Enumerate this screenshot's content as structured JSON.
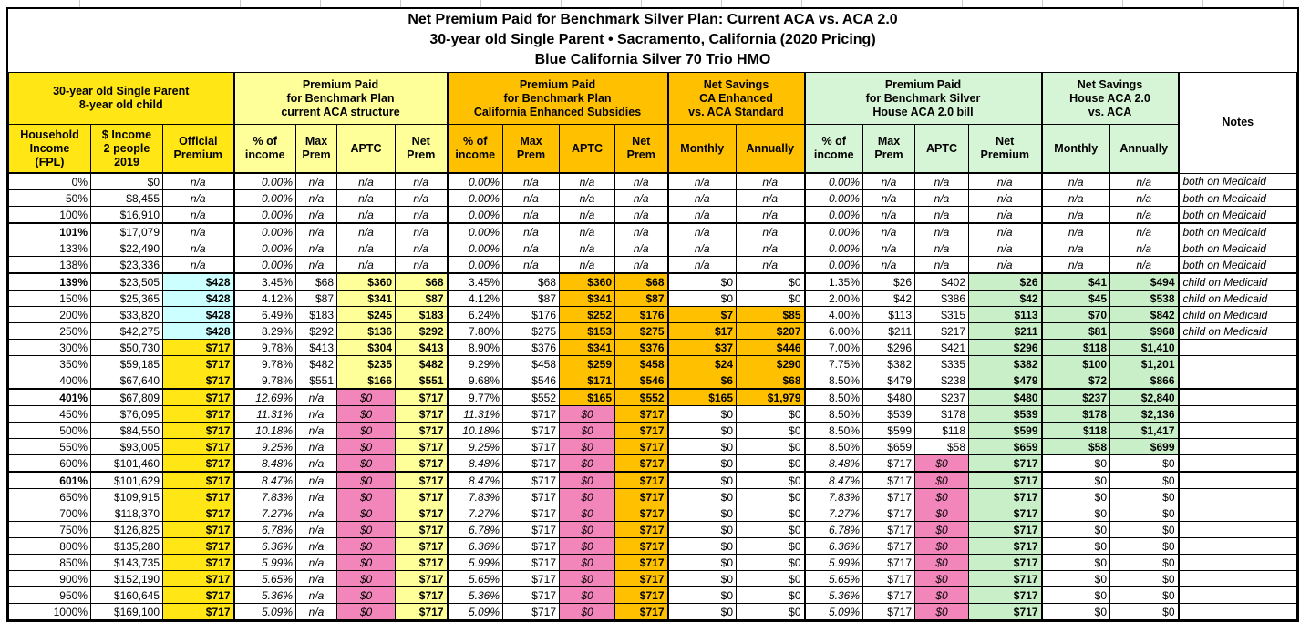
{
  "title": {
    "line1": "Net Premium Paid for Benchmark Silver Plan: Current ACA vs. ACA 2.0",
    "line2": "30-year old Single Parent • Sacramento, California (2020 Pricing)",
    "line3": "Blue California Silver 70 Trio HMO"
  },
  "colors": {
    "strong_yellow": "#ffe614",
    "pale_yellow": "#ffff99",
    "orange": "#ffc000",
    "pale_green_header": "#d6f5d6",
    "pale_green_cell": "#c8efc8",
    "cyan": "#ccffff",
    "pink": "#f285ba",
    "border": "#000000"
  },
  "groups": [
    {
      "id": "household",
      "lines": [
        "30-year old Single Parent",
        "8-year old child"
      ],
      "span": 3,
      "color": "yellow"
    },
    {
      "id": "aca-current",
      "lines": [
        "Premium Paid",
        "for Benchmark Plan",
        "current ACA structure"
      ],
      "span": 4,
      "color": "ly"
    },
    {
      "id": "ca-enhanced",
      "lines": [
        "Premium Paid",
        "for Benchmark Plan",
        "California Enhanced Subsidies"
      ],
      "span": 4,
      "color": "orange"
    },
    {
      "id": "ca-savings",
      "lines": [
        "Net Savings",
        "CA Enhanced",
        "vs. ACA Standard"
      ],
      "span": 2,
      "color": "orange"
    },
    {
      "id": "house-aca2",
      "lines": [
        "Premium Paid",
        "for Benchmark Silver",
        "House ACA 2.0 bill"
      ],
      "span": 4,
      "color": "grnhdr"
    },
    {
      "id": "house-savings",
      "lines": [
        "Net Savings",
        "House ACA 2.0",
        "vs. ACA"
      ],
      "span": 2,
      "color": "grnhdr"
    }
  ],
  "notes_header": "Notes",
  "column_headers": [
    {
      "id": "fpl",
      "lines": [
        "Household",
        "Income",
        "(FPL)"
      ],
      "color": "yellow"
    },
    {
      "id": "income",
      "lines": [
        "$ Income",
        "2 people",
        "2019"
      ],
      "color": "yellow"
    },
    {
      "id": "official-premium",
      "lines": [
        "Official",
        "Premium"
      ],
      "color": "yellow"
    },
    {
      "id": "aca-pct-income",
      "lines": [
        "% of",
        "income"
      ],
      "color": "ly"
    },
    {
      "id": "aca-max-prem",
      "lines": [
        "Max",
        "Prem"
      ],
      "color": "ly"
    },
    {
      "id": "aca-aptc",
      "lines": [
        "APTC"
      ],
      "color": "ly"
    },
    {
      "id": "aca-net-prem",
      "lines": [
        "Net",
        "Prem"
      ],
      "color": "ly"
    },
    {
      "id": "ca-pct-income",
      "lines": [
        "% of",
        "income"
      ],
      "color": "orange"
    },
    {
      "id": "ca-max-prem",
      "lines": [
        "Max",
        "Prem"
      ],
      "color": "orange"
    },
    {
      "id": "ca-aptc",
      "lines": [
        "APTC"
      ],
      "color": "orange"
    },
    {
      "id": "ca-net-prem",
      "lines": [
        "Net",
        "Prem"
      ],
      "color": "orange"
    },
    {
      "id": "ca-monthly",
      "lines": [
        "Monthly"
      ],
      "color": "orange"
    },
    {
      "id": "ca-annually",
      "lines": [
        "Annually"
      ],
      "color": "orange"
    },
    {
      "id": "house-pct-income",
      "lines": [
        "% of",
        "income"
      ],
      "color": "grnhdr"
    },
    {
      "id": "house-max-prem",
      "lines": [
        "Max",
        "Prem"
      ],
      "color": "grnhdr"
    },
    {
      "id": "house-aptc",
      "lines": [
        "APTC"
      ],
      "color": "grnhdr"
    },
    {
      "id": "house-net-premium",
      "lines": [
        "Net",
        "Premium"
      ],
      "color": "grnhdr"
    },
    {
      "id": "house-monthly",
      "lines": [
        "Monthly"
      ],
      "color": "grnhdr"
    },
    {
      "id": "house-annually",
      "lines": [
        "Annually"
      ],
      "color": "grnhdr"
    }
  ],
  "rows": [
    {
      "fpl": "0%",
      "income": "$0",
      "premium": "n/a",
      "aca": [
        "0.00%",
        "n/a",
        "n/a",
        "n/a"
      ],
      "ca": [
        "0.00%",
        "n/a",
        "n/a",
        "n/a"
      ],
      "ca_sav": [
        "n/a",
        "n/a"
      ],
      "house": [
        "0.00%",
        "n/a",
        "n/a",
        "n/a"
      ],
      "house_sav": [
        "n/a",
        "n/a"
      ],
      "notes": "both on Medicaid",
      "band": "medicaid"
    },
    {
      "fpl": "50%",
      "income": "$8,455",
      "premium": "n/a",
      "aca": [
        "0.00%",
        "n/a",
        "n/a",
        "n/a"
      ],
      "ca": [
        "0.00%",
        "n/a",
        "n/a",
        "n/a"
      ],
      "ca_sav": [
        "n/a",
        "n/a"
      ],
      "house": [
        "0.00%",
        "n/a",
        "n/a",
        "n/a"
      ],
      "house_sav": [
        "n/a",
        "n/a"
      ],
      "notes": "both on Medicaid",
      "band": "medicaid"
    },
    {
      "fpl": "100%",
      "income": "$16,910",
      "premium": "n/a",
      "aca": [
        "0.00%",
        "n/a",
        "n/a",
        "n/a"
      ],
      "ca": [
        "0.00%",
        "n/a",
        "n/a",
        "n/a"
      ],
      "ca_sav": [
        "n/a",
        "n/a"
      ],
      "house": [
        "0.00%",
        "n/a",
        "n/a",
        "n/a"
      ],
      "house_sav": [
        "n/a",
        "n/a"
      ],
      "notes": "both on Medicaid",
      "band": "medicaid"
    },
    {
      "fpl": "101%",
      "income": "$17,079",
      "premium": "n/a",
      "aca": [
        "0.00%",
        "n/a",
        "n/a",
        "n/a"
      ],
      "ca": [
        "0.00%",
        "n/a",
        "n/a",
        "n/a"
      ],
      "ca_sav": [
        "n/a",
        "n/a"
      ],
      "house": [
        "0.00%",
        "n/a",
        "n/a",
        "n/a"
      ],
      "house_sav": [
        "n/a",
        "n/a"
      ],
      "notes": "both on Medicaid",
      "band": "medicaid",
      "key": true
    },
    {
      "fpl": "133%",
      "income": "$22,490",
      "premium": "n/a",
      "aca": [
        "0.00%",
        "n/a",
        "n/a",
        "n/a"
      ],
      "ca": [
        "0.00%",
        "n/a",
        "n/a",
        "n/a"
      ],
      "ca_sav": [
        "n/a",
        "n/a"
      ],
      "house": [
        "0.00%",
        "n/a",
        "n/a",
        "n/a"
      ],
      "house_sav": [
        "n/a",
        "n/a"
      ],
      "notes": "both on Medicaid",
      "band": "medicaid"
    },
    {
      "fpl": "138%",
      "income": "$23,336",
      "premium": "n/a",
      "aca": [
        "0.00%",
        "n/a",
        "n/a",
        "n/a"
      ],
      "ca": [
        "0.00%",
        "n/a",
        "n/a",
        "n/a"
      ],
      "ca_sav": [
        "n/a",
        "n/a"
      ],
      "house": [
        "0.00%",
        "n/a",
        "n/a",
        "n/a"
      ],
      "house_sav": [
        "n/a",
        "n/a"
      ],
      "notes": "both on Medicaid",
      "band": "medicaid"
    },
    {
      "fpl": "139%",
      "income": "$23,505",
      "premium": "$428",
      "aca": [
        "3.45%",
        "$68",
        "$360",
        "$68"
      ],
      "ca": [
        "3.45%",
        "$68",
        "$360",
        "$68"
      ],
      "ca_sav": [
        "$0",
        "$0"
      ],
      "house": [
        "1.35%",
        "$26",
        "$402",
        "$26"
      ],
      "house_sav": [
        "$41",
        "$494"
      ],
      "notes": "child on Medicaid",
      "band": "b139",
      "key": true
    },
    {
      "fpl": "150%",
      "income": "$25,365",
      "premium": "$428",
      "aca": [
        "4.12%",
        "$87",
        "$341",
        "$87"
      ],
      "ca": [
        "4.12%",
        "$87",
        "$341",
        "$87"
      ],
      "ca_sav": [
        "$0",
        "$0"
      ],
      "house": [
        "2.00%",
        "$42",
        "$386",
        "$42"
      ],
      "house_sav": [
        "$45",
        "$538"
      ],
      "notes": "child on Medicaid",
      "band": "b139"
    },
    {
      "fpl": "200%",
      "income": "$33,820",
      "premium": "$428",
      "aca": [
        "6.49%",
        "$183",
        "$245",
        "$183"
      ],
      "ca": [
        "6.24%",
        "$176",
        "$252",
        "$176"
      ],
      "ca_sav": [
        "$7",
        "$85"
      ],
      "house": [
        "4.00%",
        "$113",
        "$315",
        "$113"
      ],
      "house_sav": [
        "$70",
        "$842"
      ],
      "notes": "child on Medicaid",
      "band": "b200"
    },
    {
      "fpl": "250%",
      "income": "$42,275",
      "premium": "$428",
      "aca": [
        "8.29%",
        "$292",
        "$136",
        "$292"
      ],
      "ca": [
        "7.80%",
        "$275",
        "$153",
        "$275"
      ],
      "ca_sav": [
        "$17",
        "$207"
      ],
      "house": [
        "6.00%",
        "$211",
        "$217",
        "$211"
      ],
      "house_sav": [
        "$81",
        "$968"
      ],
      "notes": "child on Medicaid",
      "band": "b200"
    },
    {
      "fpl": "300%",
      "income": "$50,730",
      "premium": "$717",
      "aca": [
        "9.78%",
        "$413",
        "$304",
        "$413"
      ],
      "ca": [
        "8.90%",
        "$376",
        "$341",
        "$376"
      ],
      "ca_sav": [
        "$37",
        "$446"
      ],
      "house": [
        "7.00%",
        "$296",
        "$421",
        "$296"
      ],
      "house_sav": [
        "$118",
        "$1,410"
      ],
      "notes": "",
      "band": "b300"
    },
    {
      "fpl": "350%",
      "income": "$59,185",
      "premium": "$717",
      "aca": [
        "9.78%",
        "$482",
        "$235",
        "$482"
      ],
      "ca": [
        "9.29%",
        "$458",
        "$259",
        "$458"
      ],
      "ca_sav": [
        "$24",
        "$290"
      ],
      "house": [
        "7.75%",
        "$382",
        "$335",
        "$382"
      ],
      "house_sav": [
        "$100",
        "$1,201"
      ],
      "notes": "",
      "band": "b300"
    },
    {
      "fpl": "400%",
      "income": "$67,640",
      "premium": "$717",
      "aca": [
        "9.78%",
        "$551",
        "$166",
        "$551"
      ],
      "ca": [
        "9.68%",
        "$546",
        "$171",
        "$546"
      ],
      "ca_sav": [
        "$6",
        "$68"
      ],
      "house": [
        "8.50%",
        "$479",
        "$238",
        "$479"
      ],
      "house_sav": [
        "$72",
        "$866"
      ],
      "notes": "",
      "band": "b300"
    },
    {
      "fpl": "401%",
      "income": "$67,809",
      "premium": "$717",
      "aca": [
        "12.69%",
        "n/a",
        "$0",
        "$717"
      ],
      "ca": [
        "9.77%",
        "$552",
        "$165",
        "$552"
      ],
      "ca_sav": [
        "$165",
        "$1,979"
      ],
      "house": [
        "8.50%",
        "$480",
        "$237",
        "$480"
      ],
      "house_sav": [
        "$237",
        "$2,840"
      ],
      "notes": "",
      "band": "b401",
      "key": true
    },
    {
      "fpl": "450%",
      "income": "$76,095",
      "premium": "$717",
      "aca": [
        "11.31%",
        "n/a",
        "$0",
        "$717"
      ],
      "ca": [
        "11.31%",
        "$717",
        "$0",
        "$717"
      ],
      "ca_sav": [
        "$0",
        "$0"
      ],
      "house": [
        "8.50%",
        "$539",
        "$178",
        "$539"
      ],
      "house_sav": [
        "$178",
        "$2,136"
      ],
      "notes": "",
      "band": "b450"
    },
    {
      "fpl": "500%",
      "income": "$84,550",
      "premium": "$717",
      "aca": [
        "10.18%",
        "n/a",
        "$0",
        "$717"
      ],
      "ca": [
        "10.18%",
        "$717",
        "$0",
        "$717"
      ],
      "ca_sav": [
        "$0",
        "$0"
      ],
      "house": [
        "8.50%",
        "$599",
        "$118",
        "$599"
      ],
      "house_sav": [
        "$118",
        "$1,417"
      ],
      "notes": "",
      "band": "b450"
    },
    {
      "fpl": "550%",
      "income": "$93,005",
      "premium": "$717",
      "aca": [
        "9.25%",
        "n/a",
        "$0",
        "$717"
      ],
      "ca": [
        "9.25%",
        "$717",
        "$0",
        "$717"
      ],
      "ca_sav": [
        "$0",
        "$0"
      ],
      "house": [
        "8.50%",
        "$659",
        "$58",
        "$659"
      ],
      "house_sav": [
        "$58",
        "$699"
      ],
      "notes": "",
      "band": "b450"
    },
    {
      "fpl": "600%",
      "income": "$101,460",
      "premium": "$717",
      "aca": [
        "8.48%",
        "n/a",
        "$0",
        "$717"
      ],
      "ca": [
        "8.48%",
        "$717",
        "$0",
        "$717"
      ],
      "ca_sav": [
        "$0",
        "$0"
      ],
      "house": [
        "8.48%",
        "$717",
        "$0",
        "$717"
      ],
      "house_sav": [
        "$0",
        "$0"
      ],
      "notes": "",
      "band": "b600"
    },
    {
      "fpl": "601%",
      "income": "$101,629",
      "premium": "$717",
      "aca": [
        "8.47%",
        "n/a",
        "$0",
        "$717"
      ],
      "ca": [
        "8.47%",
        "$717",
        "$0",
        "$717"
      ],
      "ca_sav": [
        "$0",
        "$0"
      ],
      "house": [
        "8.47%",
        "$717",
        "$0",
        "$717"
      ],
      "house_sav": [
        "$0",
        "$0"
      ],
      "notes": "",
      "band": "b600",
      "key": true
    },
    {
      "fpl": "650%",
      "income": "$109,915",
      "premium": "$717",
      "aca": [
        "7.83%",
        "n/a",
        "$0",
        "$717"
      ],
      "ca": [
        "7.83%",
        "$717",
        "$0",
        "$717"
      ],
      "ca_sav": [
        "$0",
        "$0"
      ],
      "house": [
        "7.83%",
        "$717",
        "$0",
        "$717"
      ],
      "house_sav": [
        "$0",
        "$0"
      ],
      "notes": "",
      "band": "b600"
    },
    {
      "fpl": "700%",
      "income": "$118,370",
      "premium": "$717",
      "aca": [
        "7.27%",
        "n/a",
        "$0",
        "$717"
      ],
      "ca": [
        "7.27%",
        "$717",
        "$0",
        "$717"
      ],
      "ca_sav": [
        "$0",
        "$0"
      ],
      "house": [
        "7.27%",
        "$717",
        "$0",
        "$717"
      ],
      "house_sav": [
        "$0",
        "$0"
      ],
      "notes": "",
      "band": "b600"
    },
    {
      "fpl": "750%",
      "income": "$126,825",
      "premium": "$717",
      "aca": [
        "6.78%",
        "n/a",
        "$0",
        "$717"
      ],
      "ca": [
        "6.78%",
        "$717",
        "$0",
        "$717"
      ],
      "ca_sav": [
        "$0",
        "$0"
      ],
      "house": [
        "6.78%",
        "$717",
        "$0",
        "$717"
      ],
      "house_sav": [
        "$0",
        "$0"
      ],
      "notes": "",
      "band": "b600"
    },
    {
      "fpl": "800%",
      "income": "$135,280",
      "premium": "$717",
      "aca": [
        "6.36%",
        "n/a",
        "$0",
        "$717"
      ],
      "ca": [
        "6.36%",
        "$717",
        "$0",
        "$717"
      ],
      "ca_sav": [
        "$0",
        "$0"
      ],
      "house": [
        "6.36%",
        "$717",
        "$0",
        "$717"
      ],
      "house_sav": [
        "$0",
        "$0"
      ],
      "notes": "",
      "band": "b600"
    },
    {
      "fpl": "850%",
      "income": "$143,735",
      "premium": "$717",
      "aca": [
        "5.99%",
        "n/a",
        "$0",
        "$717"
      ],
      "ca": [
        "5.99%",
        "$717",
        "$0",
        "$717"
      ],
      "ca_sav": [
        "$0",
        "$0"
      ],
      "house": [
        "5.99%",
        "$717",
        "$0",
        "$717"
      ],
      "house_sav": [
        "$0",
        "$0"
      ],
      "notes": "",
      "band": "b600"
    },
    {
      "fpl": "900%",
      "income": "$152,190",
      "premium": "$717",
      "aca": [
        "5.65%",
        "n/a",
        "$0",
        "$717"
      ],
      "ca": [
        "5.65%",
        "$717",
        "$0",
        "$717"
      ],
      "ca_sav": [
        "$0",
        "$0"
      ],
      "house": [
        "5.65%",
        "$717",
        "$0",
        "$717"
      ],
      "house_sav": [
        "$0",
        "$0"
      ],
      "notes": "",
      "band": "b600"
    },
    {
      "fpl": "950%",
      "income": "$160,645",
      "premium": "$717",
      "aca": [
        "5.36%",
        "n/a",
        "$0",
        "$717"
      ],
      "ca": [
        "5.36%",
        "$717",
        "$0",
        "$717"
      ],
      "ca_sav": [
        "$0",
        "$0"
      ],
      "house": [
        "5.36%",
        "$717",
        "$0",
        "$717"
      ],
      "house_sav": [
        "$0",
        "$0"
      ],
      "notes": "",
      "band": "b600"
    },
    {
      "fpl": "1000%",
      "income": "$169,100",
      "premium": "$717",
      "aca": [
        "5.09%",
        "n/a",
        "$0",
        "$717"
      ],
      "ca": [
        "5.09%",
        "$717",
        "$0",
        "$717"
      ],
      "ca_sav": [
        "$0",
        "$0"
      ],
      "house": [
        "5.09%",
        "$717",
        "$0",
        "$717"
      ],
      "house_sav": [
        "$0",
        "$0"
      ],
      "notes": "",
      "band": "b600"
    }
  ]
}
